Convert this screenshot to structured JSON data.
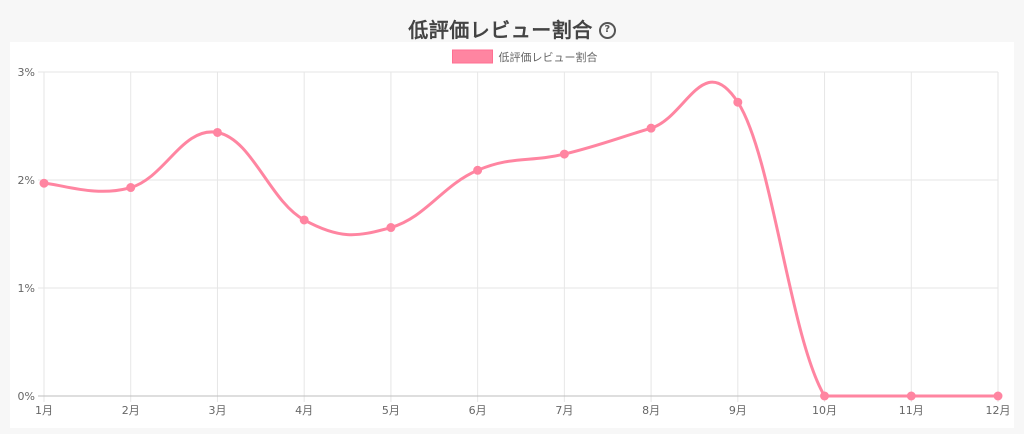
{
  "title": "低評価レビュー割合",
  "help_icon": {
    "glyph": "?",
    "name": "question-circle-icon"
  },
  "chart_data": {
    "type": "line",
    "categories": [
      "1月",
      "2月",
      "3月",
      "4月",
      "5月",
      "6月",
      "7月",
      "8月",
      "9月",
      "10月",
      "11月",
      "12月"
    ],
    "series": [
      {
        "name": "低評価レビュー割合",
        "values": [
          1.97,
          1.93,
          2.44,
          1.63,
          1.56,
          2.09,
          2.24,
          2.48,
          2.72,
          0,
          0,
          0
        ],
        "color": "#ff85a1"
      }
    ],
    "yticks": [
      "0%",
      "1%",
      "2%",
      "3%"
    ],
    "ylim": [
      0,
      3
    ],
    "grid": true,
    "legend": "top-center",
    "smooth": true
  }
}
